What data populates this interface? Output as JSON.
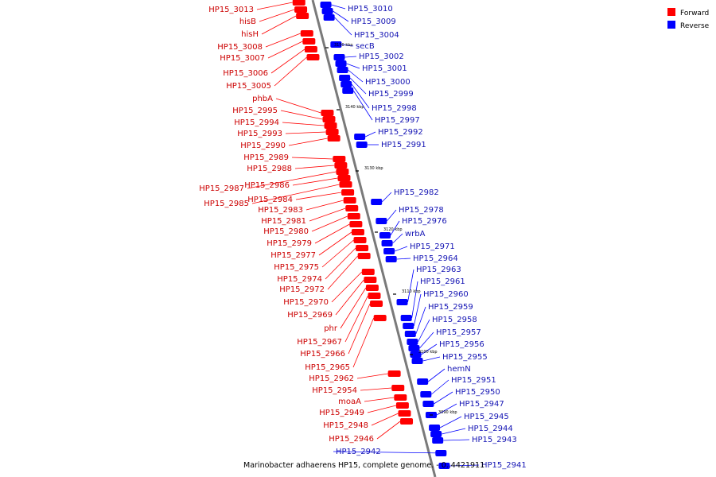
{
  "caption": "Marinobacter adhaerens HP15, complete genome. - 0..4421911",
  "legend": [
    {
      "label": "Forward",
      "color": "#ff0000"
    },
    {
      "label": "Reverse",
      "color": "#0000ff"
    }
  ],
  "colors": {
    "forward": "#ff0000",
    "reverse": "#0000ff",
    "forward_text": "#cc0000",
    "reverse_text": "#1414b4"
  },
  "ticks": [
    "3150 kbp",
    "3140 kbp",
    "3130 kbp",
    "3120 kbp",
    "3110 kbp",
    "3100 kbp",
    "3090 kbp"
  ],
  "forward_genes": [
    "HP15_3013",
    "hisB",
    "hisH",
    "HP15_3008",
    "HP15_3007",
    "HP15_3006",
    "HP15_3005",
    "phbA",
    "HP15_2995",
    "HP15_2994",
    "HP15_2993",
    "HP15_2990",
    "HP15_2989",
    "HP15_2988",
    "HP15_2987",
    "HP15_2986",
    "HP15_2985",
    "HP15_2984",
    "HP15_2983",
    "HP15_2981",
    "HP15_2980",
    "HP15_2979",
    "HP15_2977",
    "HP15_2975",
    "HP15_2974",
    "HP15_2972",
    "HP15_2970",
    "HP15_2969",
    "phr",
    "HP15_2967",
    "HP15_2966",
    "HP15_2965",
    "HP15_2962",
    "HP15_2954",
    "moaA",
    "HP15_2949",
    "HP15_2948",
    "HP15_2946"
  ],
  "reverse_genes": [
    "HP15_3010",
    "HP15_3009",
    "HP15_3004",
    "secB",
    "HP15_3002",
    "HP15_3001",
    "HP15_3000",
    "HP15_2999",
    "HP15_2998",
    "HP15_2997",
    "HP15_2992",
    "HP15_2991",
    "HP15_2982",
    "HP15_2978",
    "HP15_2976",
    "wrbA",
    "HP15_2971",
    "HP15_2964",
    "HP15_2963",
    "HP15_2961",
    "HP15_2960",
    "HP15_2959",
    "HP15_2958",
    "HP15_2957",
    "HP15_2956",
    "HP15_2955",
    "hemN",
    "HP15_2951",
    "HP15_2950",
    "HP15_2947",
    "HP15_2945",
    "HP15_2944",
    "HP15_2943",
    "HP15_2942",
    "HP15_2941"
  ]
}
